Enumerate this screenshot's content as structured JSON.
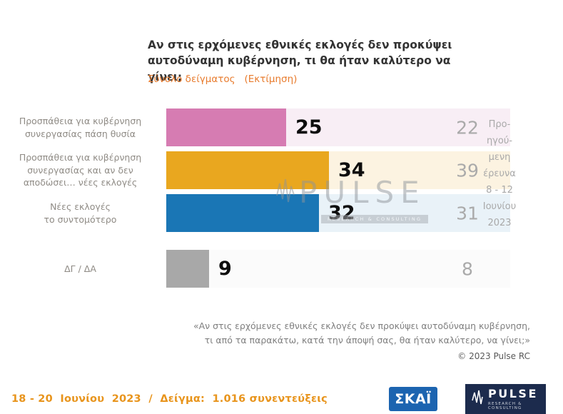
{
  "header": {
    "title_line1": "Αν στις ερχόμενες εθνικές εκλογές δεν προκύψει",
    "title_line2": "αυτοδύναμη κυβέρνηση, τι θα ήταν καλύτερο να γίνει;",
    "subtitle": "Σύνολο δείγματος   (Εκτίμηση)"
  },
  "chart_data": {
    "type": "bar",
    "orientation": "horizontal",
    "title": "Αν στις ερχόμενες εθνικές εκλογές δεν προκύψει αυτοδύναμη κυβέρνηση, τι θα ήταν καλύτερο να γίνει;",
    "subtitle": "Σύνολο δείγματος (Εκτίμηση)",
    "categories": [
      "Προσπάθεια για κυβέρνηση συνεργασίας πάση θυσία",
      "Προσπάθεια για κυβέρνηση συνεργασίας και αν δεν αποδώσει… νέες εκλογές",
      "Νέες εκλογές το συντομότερο",
      "ΔΓ / ΔΑ"
    ],
    "series": [
      {
        "name": "Σύνολο δείγματος (Εκτίμηση) 18 - 20 Ιουνίου 2023",
        "values": [
          25,
          34,
          32,
          9
        ]
      },
      {
        "name": "Προηγούμενη έρευνα 8 - 12 Ιουνίου 2023",
        "values": [
          22,
          39,
          31,
          8
        ]
      }
    ],
    "xlim": [
      0,
      72
    ],
    "grid": false,
    "legend_position": "right-inline",
    "rows": [
      {
        "label_lines": [
          "Προσπάθεια για κυβέρνηση",
          "συνεργασίας πάση θυσία"
        ],
        "value": 25,
        "previous": 22,
        "bar_color": "#d67cb2",
        "track_color": "#f8eef5"
      },
      {
        "label_lines": [
          "Προσπάθεια για κυβέρνηση",
          "συνεργασίας και αν δεν",
          "αποδώσει… νέες εκλογές"
        ],
        "value": 34,
        "previous": 39,
        "bar_color": "#e9a71f",
        "track_color": "#fcf3e1"
      },
      {
        "label_lines": [
          "Νέες εκλογές",
          "το συντομότερο"
        ],
        "value": 32,
        "previous": 31,
        "bar_color": "#1a76b5",
        "track_color": "#e9f2f8"
      },
      {
        "label_lines": [
          "ΔΓ / ΔΑ"
        ],
        "value": 9,
        "previous": 8,
        "bar_color": "#a8a8a8",
        "track_color": "#fbfbfb"
      }
    ]
  },
  "previous_note": {
    "lines": [
      "Προ-",
      "ηγού-",
      "μενη",
      "έρευνα",
      "8 - 12",
      "Ιουνίου",
      "2023"
    ]
  },
  "quote": {
    "line1": "«Αν στις ερχόμενες εθνικές εκλογές δεν προκύψει αυτοδύναμη κυβέρνηση,",
    "line2": "τι από τα παρακάτω, κατά την άποψή σας, θα ήταν καλύτερο, να γίνει;»"
  },
  "copyright": "© 2023 Pulse RC",
  "footer": {
    "date_sample": "18 - 20  Ιουνίου  2023  /  Δείγμα:  1.016 συνεντεύξεις"
  },
  "logos": {
    "skai": "ΣΚΑΪ",
    "pulse": "PULSE",
    "pulse_sub": "RESEARCH & CONSULTING"
  },
  "watermark": {
    "text": "PULSE",
    "sub": "RESEARCH & CONSULTING"
  },
  "colors": {
    "title": "#333333",
    "subtitle_orange": "#e87b2d",
    "footer_orange": "#e8941c",
    "previous_gray": "#aaaaaa",
    "skai_blue": "#1c64b0",
    "pulse_navy": "#1c2b4d"
  }
}
